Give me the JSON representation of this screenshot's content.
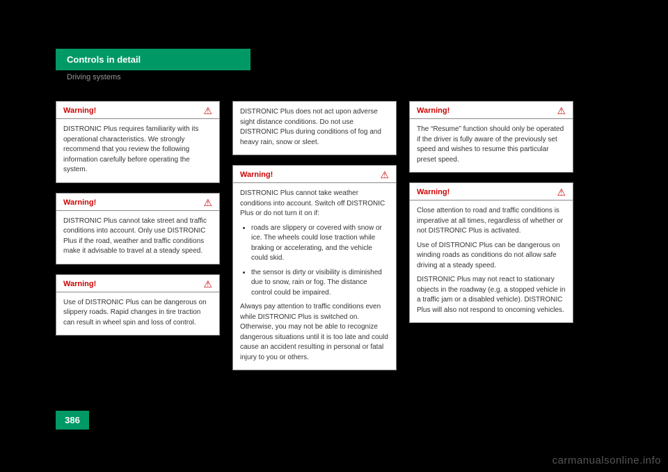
{
  "header": {
    "title": "Controls in detail",
    "subtitle": "Driving systems"
  },
  "labels": {
    "warning": "Warning!"
  },
  "col1": {
    "box1": {
      "text": "DISTRONIC Plus requires familiarity with its operational characteristics. We strongly recommend that you review the following information carefully before operating the system."
    },
    "box2": {
      "text": "DISTRONIC Plus cannot take street and traffic conditions into account. Only use DISTRONIC Plus if the road, weather and traffic conditions make it advisable to travel at a steady speed."
    },
    "box3": {
      "text": "Use of DISTRONIC Plus can be dangerous on slippery roads. Rapid changes in tire traction can result in wheel spin and loss of control."
    }
  },
  "col2": {
    "box1": {
      "text": "DISTRONIC Plus does not act upon adverse sight distance conditions. Do not use DISTRONIC Plus during conditions of fog and heavy rain, snow or sleet."
    },
    "box2": {
      "intro": "DISTRONIC Plus cannot take weather conditions into account. Switch off DISTRONIC Plus or do not turn it on if:",
      "b1": "roads are slippery or covered with snow or ice. The wheels could lose traction while braking or accelerating, and the vehicle could skid.",
      "b2": "the sensor is dirty or visibility is diminished due to snow, rain or fog. The distance control could be impaired.",
      "outro": "Always pay attention to traffic conditions even while DISTRONIC Plus is switched on. Otherwise, you may not be able to recognize dangerous situations until it is too late and could cause an accident resulting in personal or fatal injury to you or others."
    }
  },
  "col3": {
    "box1": {
      "text": "The “Resume” function should only be operated if the driver is fully aware of the previously set speed and wishes to resume this particular preset speed."
    },
    "box2": {
      "p1": "Close attention to road and traffic conditions is imperative at all times, regardless of whether or not DISTRONIC Plus is activated.",
      "p2": "Use of DISTRONIC Plus can be dangerous on winding roads as conditions do not allow safe driving at a steady speed.",
      "p3": "DISTRONIC Plus may not react to stationary objects in the roadway (e.g. a stopped vehicle in a traffic jam or a disabled vehicle). DISTRONIC Plus will also not respond to oncoming vehicles."
    }
  },
  "page_number": "386",
  "watermark": "carmanualsonline.info"
}
